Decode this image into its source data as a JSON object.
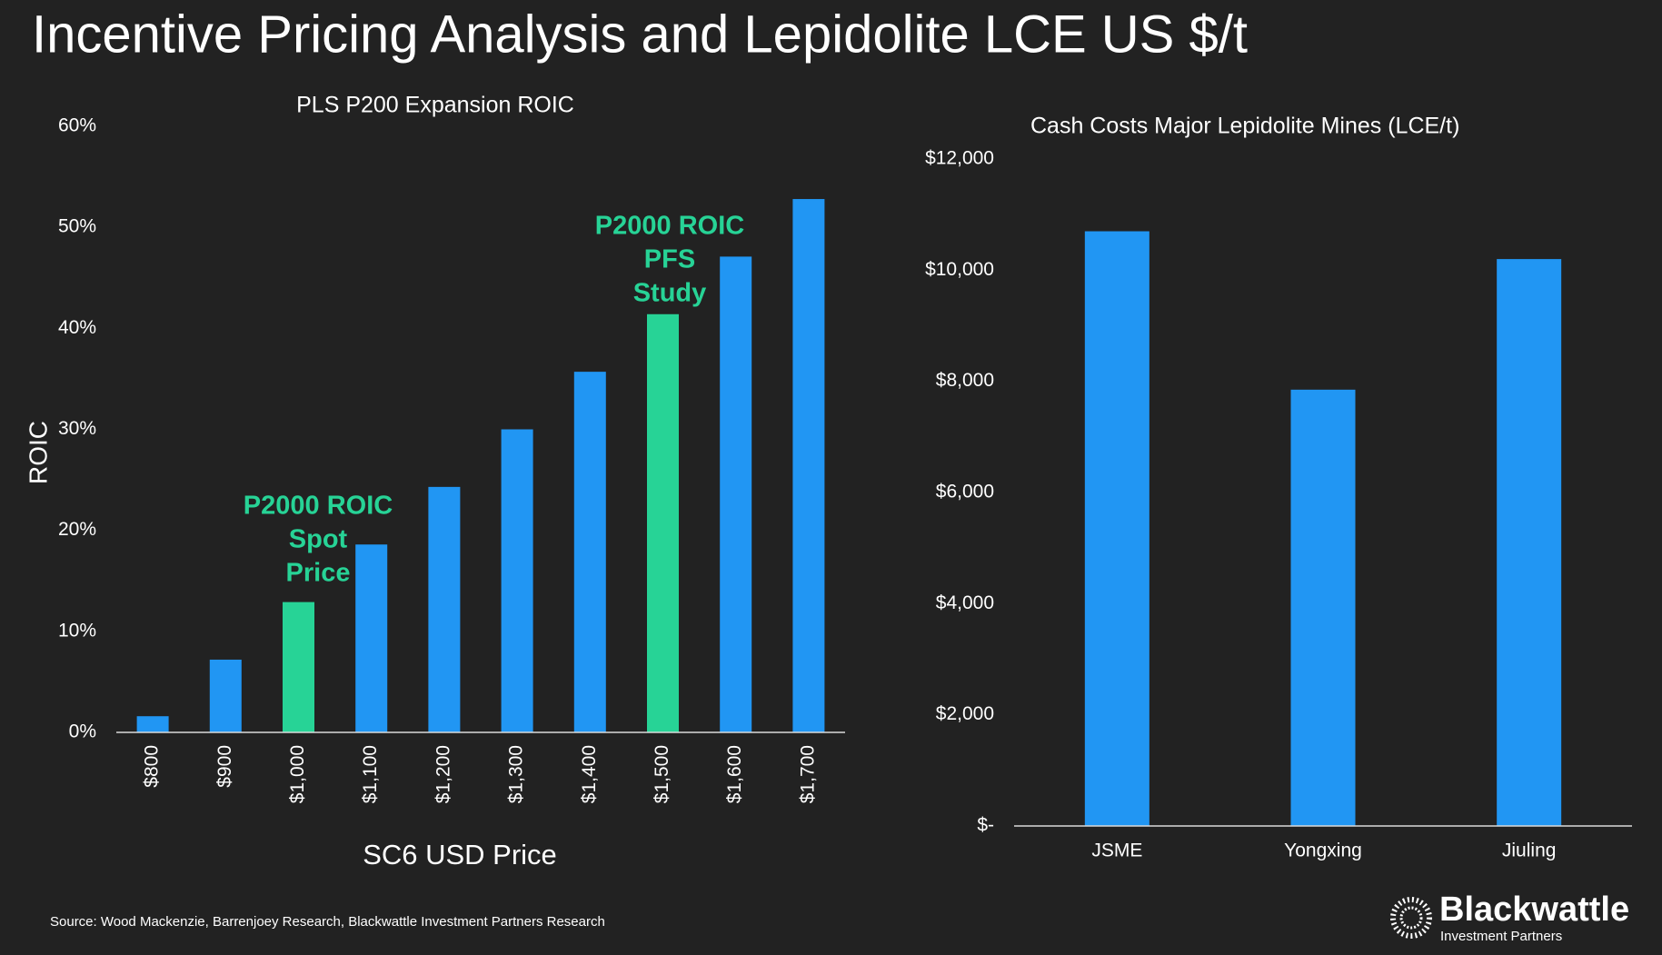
{
  "title": "Incentive Pricing Analysis and Lepidolite LCE US $/t",
  "source": "Source: Wood Mackenzie, Barrenjoey Research, Blackwattle Investment Partners Research",
  "logo": {
    "name": "Blackwattle",
    "subtitle": "Investment Partners"
  },
  "chart_data": [
    {
      "type": "bar",
      "title": "PLS P200 Expansion ROIC",
      "y_label": "ROIC",
      "x_label": "SC6 USD Price",
      "categories": [
        "$800",
        "$900",
        "$1,000",
        "$1,100",
        "$1,200",
        "$1,300",
        "$1,400",
        "$1,500",
        "$1,600",
        "$1,700"
      ],
      "values": [
        1.6,
        7.2,
        12.9,
        18.6,
        24.3,
        30.0,
        35.7,
        41.4,
        47.1,
        52.8
      ],
      "colors": [
        "#2196f3",
        "#2196f3",
        "#27d396",
        "#2196f3",
        "#2196f3",
        "#2196f3",
        "#2196f3",
        "#27d396",
        "#2196f3",
        "#2196f3"
      ],
      "ylim": [
        0,
        60
      ],
      "yticks": [
        {
          "value": 0,
          "label": "0%"
        },
        {
          "value": 10,
          "label": "10%"
        },
        {
          "value": 20,
          "label": "20%"
        },
        {
          "value": 30,
          "label": "30%"
        },
        {
          "value": 40,
          "label": "40%"
        },
        {
          "value": 50,
          "label": "50%"
        },
        {
          "value": 60,
          "label": "60%"
        }
      ],
      "annotations": [
        [
          "P2000 ROIC",
          "Spot",
          "Price"
        ],
        [
          "P2000 ROIC",
          "PFS",
          "Study"
        ]
      ],
      "annotation_color": "#27d396"
    },
    {
      "type": "bar",
      "title": "Cash Costs Major Lepidolite Mines (LCE/t)",
      "categories": [
        "JSME",
        "Yongxing",
        "Jiuling"
      ],
      "values": [
        10700,
        7850,
        10200
      ],
      "colors": [
        "#2196f3",
        "#2196f3",
        "#2196f3"
      ],
      "ylim": [
        0,
        12000
      ],
      "yticks": [
        {
          "value": 0,
          "label": "$-"
        },
        {
          "value": 2000,
          "label": "$2,000"
        },
        {
          "value": 4000,
          "label": "$4,000"
        },
        {
          "value": 6000,
          "label": "$6,000"
        },
        {
          "value": 8000,
          "label": "$8,000"
        },
        {
          "value": 10000,
          "label": "$10,000"
        },
        {
          "value": 12000,
          "label": "$12,000"
        }
      ]
    }
  ]
}
